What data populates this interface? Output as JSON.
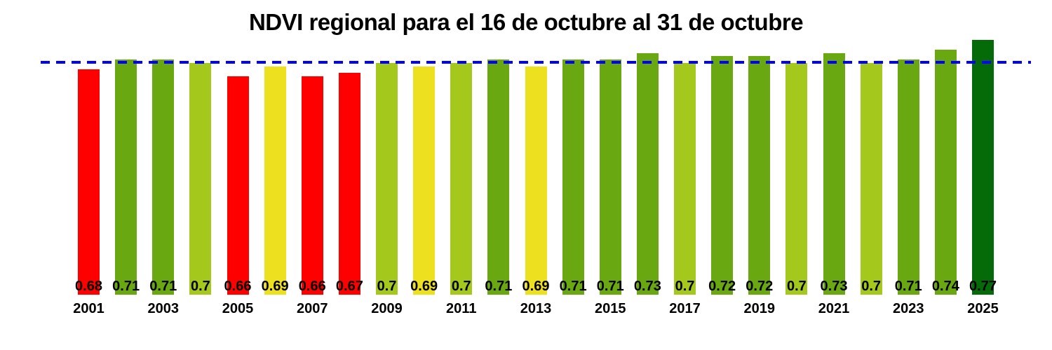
{
  "chart_data": {
    "type": "bar",
    "title": "NDVI regional para el 16 de octubre al 31 de octubre",
    "xlabel": "",
    "ylabel": "",
    "x": [
      2001,
      2002,
      2003,
      2004,
      2005,
      2006,
      2007,
      2008,
      2009,
      2010,
      2011,
      2012,
      2013,
      2014,
      2015,
      2016,
      2017,
      2018,
      2019,
      2020,
      2021,
      2022,
      2023,
      2024,
      2025
    ],
    "values": [
      0.68,
      0.71,
      0.71,
      0.7,
      0.66,
      0.69,
      0.66,
      0.67,
      0.7,
      0.69,
      0.7,
      0.71,
      0.69,
      0.71,
      0.71,
      0.73,
      0.7,
      0.72,
      0.72,
      0.7,
      0.73,
      0.7,
      0.71,
      0.74,
      0.77
    ],
    "value_labels": [
      "0.68",
      "0.71",
      "0.71",
      "0.7",
      "0.66",
      "0.69",
      "0.66",
      "0.67",
      "0.7",
      "0.69",
      "0.7",
      "0.71",
      "0.69",
      "0.71",
      "0.71",
      "0.73",
      "0.7",
      "0.72",
      "0.72",
      "0.7",
      "0.73",
      "0.7",
      "0.71",
      "0.74",
      "0.77"
    ],
    "bar_colors": [
      "#FE0000",
      "#6AA811",
      "#6AA811",
      "#A4C81C",
      "#FE0000",
      "#EDE01E",
      "#FE0000",
      "#FE0000",
      "#A4C81C",
      "#EDE01E",
      "#A4C81C",
      "#6AA811",
      "#EDE01E",
      "#6AA811",
      "#6AA811",
      "#6AA811",
      "#A4C81C",
      "#6AA811",
      "#6AA811",
      "#A4C81C",
      "#6AA811",
      "#A4C81C",
      "#6AA811",
      "#6AA811",
      "#046B08"
    ],
    "x_tick_labels": [
      "2001",
      "2003",
      "2005",
      "2007",
      "2009",
      "2011",
      "2013",
      "2015",
      "2017",
      "2019",
      "2021",
      "2023",
      "2025"
    ],
    "ylim": [
      0,
      0.79
    ],
    "grid": false,
    "legend": "none",
    "reference_line": {
      "value": 0.702,
      "color": "#0000FE",
      "style": "dashed"
    },
    "palette": {
      "red": "#FE0000",
      "yellow": "#EDE01E",
      "light_green": "#A4C81C",
      "green": "#6AA811",
      "dark_green": "#046B08"
    }
  }
}
